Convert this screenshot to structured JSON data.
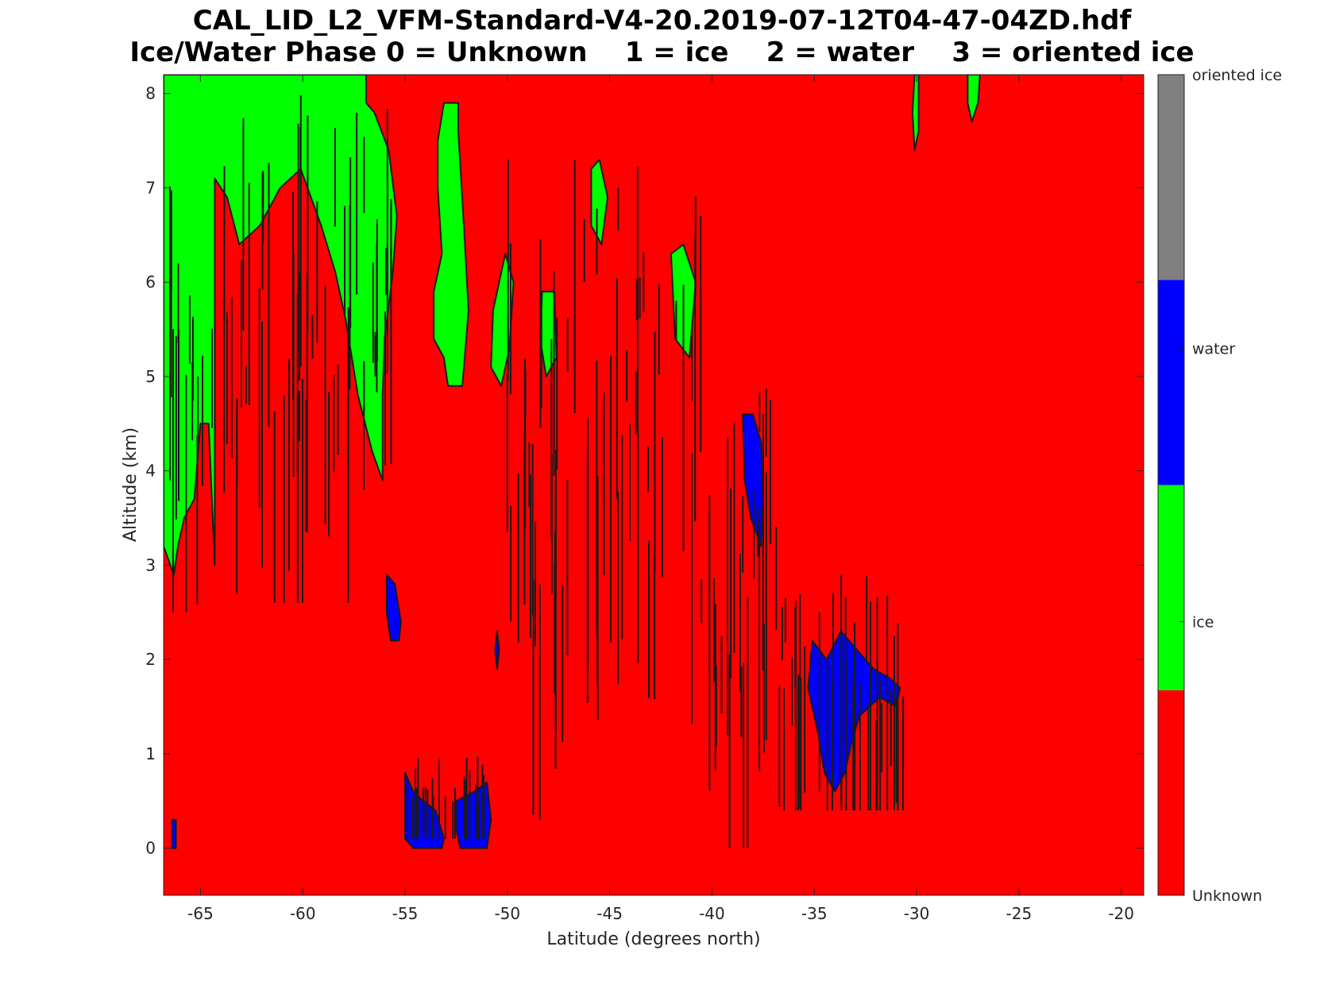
{
  "chart_data": {
    "type": "heatmap",
    "title": "CAL_LID_L2_VFM-Standard-V4-20.2019-07-12T04-47-04ZD.hdf",
    "subtitle": "Ice/Water Phase 0 = Unknown    1 = ice    2 = water    3 = oriented ice",
    "xlabel": "Latitude (degrees north)",
    "ylabel": "Altitude (km)",
    "xlim": [
      -66.8,
      -18.9
    ],
    "ylim": [
      -0.5,
      8.2
    ],
    "xticks": [
      -65,
      -60,
      -55,
      -50,
      -45,
      -40,
      -35,
      -30,
      -25,
      -20
    ],
    "yticks": [
      0,
      1,
      2,
      3,
      4,
      5,
      6,
      7,
      8
    ],
    "background_class": "Unknown",
    "colorbar": {
      "categories": [
        {
          "value": 0,
          "label": "Unknown",
          "color": "#ff0000"
        },
        {
          "value": 1,
          "label": "ice",
          "color": "#00ff00"
        },
        {
          "value": 2,
          "label": "water",
          "color": "#0000ff"
        },
        {
          "value": 3,
          "label": "oriented ice",
          "color": "#808080"
        }
      ]
    },
    "regions": [
      {
        "class": "ice",
        "color": "#00ff00",
        "polygon": [
          [
            -66.8,
            8.2
          ],
          [
            -56.9,
            8.2
          ],
          [
            -56.9,
            7.9
          ],
          [
            -56.5,
            7.8
          ],
          [
            -55.8,
            7.4
          ],
          [
            -55.4,
            6.7
          ],
          [
            -55.6,
            6.1
          ],
          [
            -56.0,
            5.4
          ],
          [
            -56.1,
            4.8
          ],
          [
            -56.1,
            3.9
          ],
          [
            -56.6,
            4.2
          ],
          [
            -57.3,
            4.8
          ],
          [
            -57.9,
            5.6
          ],
          [
            -58.4,
            6.1
          ],
          [
            -59.1,
            6.6
          ],
          [
            -60.1,
            7.2
          ],
          [
            -61.1,
            7.0
          ],
          [
            -62.1,
            6.6
          ],
          [
            -63.1,
            6.4
          ],
          [
            -63.7,
            6.9
          ],
          [
            -64.3,
            7.1
          ],
          [
            -64.3,
            3.0
          ],
          [
            -64.6,
            4.5
          ],
          [
            -65.0,
            4.5
          ],
          [
            -65.3,
            3.7
          ],
          [
            -65.8,
            3.5
          ],
          [
            -66.1,
            3.2
          ],
          [
            -66.3,
            2.9
          ],
          [
            -66.8,
            3.2
          ]
        ]
      },
      {
        "class": "ice",
        "color": "#00ff00",
        "polygon": [
          [
            -53.1,
            7.9
          ],
          [
            -52.4,
            7.9
          ],
          [
            -52.4,
            7.6
          ],
          [
            -52.1,
            6.5
          ],
          [
            -51.9,
            5.7
          ],
          [
            -52.2,
            4.9
          ],
          [
            -52.9,
            4.9
          ],
          [
            -53.1,
            5.2
          ],
          [
            -53.6,
            5.4
          ],
          [
            -53.6,
            5.9
          ],
          [
            -53.2,
            6.3
          ],
          [
            -53.4,
            7.0
          ],
          [
            -53.4,
            7.5
          ]
        ]
      },
      {
        "class": "ice",
        "color": "#00ff00",
        "polygon": [
          [
            -48.3,
            5.9
          ],
          [
            -47.7,
            5.9
          ],
          [
            -47.6,
            5.2
          ],
          [
            -48.1,
            5.0
          ],
          [
            -48.4,
            5.4
          ]
        ]
      },
      {
        "class": "ice",
        "color": "#00ff00",
        "polygon": [
          [
            -45.9,
            7.2
          ],
          [
            -45.5,
            7.3
          ],
          [
            -45.1,
            6.9
          ],
          [
            -45.4,
            6.4
          ],
          [
            -45.9,
            6.6
          ]
        ]
      },
      {
        "class": "ice",
        "color": "#00ff00",
        "polygon": [
          [
            -50.1,
            6.3
          ],
          [
            -49.7,
            6.0
          ],
          [
            -49.9,
            5.3
          ],
          [
            -50.3,
            4.9
          ],
          [
            -50.8,
            5.1
          ],
          [
            -50.7,
            5.7
          ]
        ]
      },
      {
        "class": "ice",
        "color": "#00ff00",
        "polygon": [
          [
            -42.0,
            6.3
          ],
          [
            -41.4,
            6.4
          ],
          [
            -40.8,
            6.0
          ],
          [
            -41.1,
            5.2
          ],
          [
            -41.8,
            5.4
          ]
        ]
      },
      {
        "class": "ice",
        "color": "#00ff00",
        "polygon": [
          [
            -30.1,
            8.2
          ],
          [
            -29.9,
            8.2
          ],
          [
            -29.9,
            7.6
          ],
          [
            -30.1,
            7.4
          ],
          [
            -30.2,
            7.8
          ]
        ]
      },
      {
        "class": "ice",
        "color": "#00ff00",
        "polygon": [
          [
            -27.5,
            8.2
          ],
          [
            -26.9,
            8.2
          ],
          [
            -27.0,
            7.9
          ],
          [
            -27.3,
            7.7
          ],
          [
            -27.5,
            7.9
          ]
        ]
      },
      {
        "class": "water",
        "color": "#0000ff",
        "polygon": [
          [
            -55.9,
            2.9
          ],
          [
            -55.5,
            2.8
          ],
          [
            -55.2,
            2.4
          ],
          [
            -55.3,
            2.2
          ],
          [
            -55.7,
            2.2
          ],
          [
            -55.9,
            2.5
          ]
        ]
      },
      {
        "class": "water",
        "color": "#0000ff",
        "polygon": [
          [
            -55.0,
            0.8
          ],
          [
            -54.6,
            0.6
          ],
          [
            -54.1,
            0.5
          ],
          [
            -53.5,
            0.4
          ],
          [
            -53.1,
            0.1
          ],
          [
            -53.2,
            0.0
          ],
          [
            -54.6,
            0.0
          ],
          [
            -55.0,
            0.1
          ]
        ]
      },
      {
        "class": "water",
        "color": "#0000ff",
        "polygon": [
          [
            -52.5,
            0.5
          ],
          [
            -51.6,
            0.6
          ],
          [
            -51.0,
            0.7
          ],
          [
            -50.8,
            0.3
          ],
          [
            -51.0,
            0.0
          ],
          [
            -52.3,
            0.0
          ],
          [
            -52.5,
            0.2
          ]
        ]
      },
      {
        "class": "water",
        "color": "#0000ff",
        "polygon": [
          [
            -38.5,
            4.6
          ],
          [
            -38.0,
            4.6
          ],
          [
            -37.6,
            4.3
          ],
          [
            -37.5,
            3.7
          ],
          [
            -37.6,
            3.2
          ],
          [
            -38.1,
            3.5
          ],
          [
            -38.4,
            3.9
          ]
        ]
      },
      {
        "class": "water",
        "color": "#0000ff",
        "polygon": [
          [
            -35.1,
            2.2
          ],
          [
            -34.4,
            2.0
          ],
          [
            -33.7,
            2.3
          ],
          [
            -32.9,
            2.1
          ],
          [
            -32.1,
            1.9
          ],
          [
            -31.3,
            1.8
          ],
          [
            -30.8,
            1.7
          ],
          [
            -31.0,
            1.5
          ],
          [
            -31.8,
            1.6
          ],
          [
            -32.8,
            1.4
          ],
          [
            -33.2,
            1.1
          ],
          [
            -33.5,
            0.8
          ],
          [
            -34.0,
            0.6
          ],
          [
            -34.5,
            0.8
          ],
          [
            -34.8,
            1.2
          ],
          [
            -35.3,
            1.7
          ]
        ]
      },
      {
        "class": "water",
        "color": "#0000ff",
        "polygon": [
          [
            -66.4,
            0.3
          ],
          [
            -66.2,
            0.3
          ],
          [
            -66.2,
            0.0
          ],
          [
            -66.4,
            0.0
          ]
        ]
      },
      {
        "class": "water",
        "color": "#0000ff",
        "polygon": [
          [
            -50.5,
            2.3
          ],
          [
            -50.4,
            2.1
          ],
          [
            -50.5,
            1.9
          ],
          [
            -50.6,
            2.1
          ]
        ]
      }
    ]
  }
}
